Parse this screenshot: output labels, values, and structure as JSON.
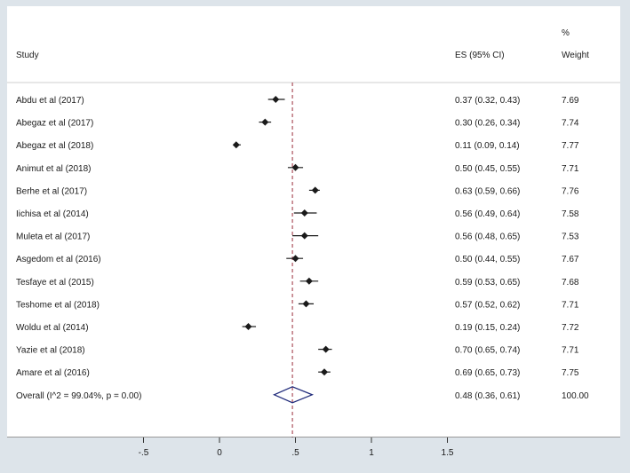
{
  "chart_data": {
    "type": "forest",
    "headers": {
      "study": "Study",
      "es": "ES (95% CI)",
      "weight_pct": "%",
      "weight": "Weight"
    },
    "studies": [
      {
        "label": "Abdu et al (2017)",
        "es": 0.37,
        "lo": 0.32,
        "hi": 0.43,
        "es_text": "0.37 (0.32, 0.43)",
        "weight": "7.69"
      },
      {
        "label": "Abegaz et al (2017)",
        "es": 0.3,
        "lo": 0.26,
        "hi": 0.34,
        "es_text": "0.30 (0.26, 0.34)",
        "weight": "7.74"
      },
      {
        "label": "Abegaz et al (2018)",
        "es": 0.11,
        "lo": 0.09,
        "hi": 0.14,
        "es_text": "0.11 (0.09, 0.14)",
        "weight": "7.77"
      },
      {
        "label": "Animut et al (2018)",
        "es": 0.5,
        "lo": 0.45,
        "hi": 0.55,
        "es_text": "0.50 (0.45, 0.55)",
        "weight": "7.71"
      },
      {
        "label": "Berhe et al (2017)",
        "es": 0.63,
        "lo": 0.59,
        "hi": 0.66,
        "es_text": "0.63 (0.59, 0.66)",
        "weight": "7.76"
      },
      {
        "label": "Iichisa et al (2014)",
        "es": 0.56,
        "lo": 0.49,
        "hi": 0.64,
        "es_text": "0.56 (0.49, 0.64)",
        "weight": "7.58"
      },
      {
        "label": "Muleta et al (2017)",
        "es": 0.56,
        "lo": 0.48,
        "hi": 0.65,
        "es_text": "0.56 (0.48, 0.65)",
        "weight": "7.53"
      },
      {
        "label": "Asgedom et al (2016)",
        "es": 0.5,
        "lo": 0.44,
        "hi": 0.55,
        "es_text": "0.50 (0.44, 0.55)",
        "weight": "7.67"
      },
      {
        "label": "Tesfaye et al  (2015)",
        "es": 0.59,
        "lo": 0.53,
        "hi": 0.65,
        "es_text": "0.59 (0.53, 0.65)",
        "weight": "7.68"
      },
      {
        "label": "Teshome et al (2018)",
        "es": 0.57,
        "lo": 0.52,
        "hi": 0.62,
        "es_text": "0.57 (0.52, 0.62)",
        "weight": "7.71"
      },
      {
        "label": "Woldu et al (2014)",
        "es": 0.19,
        "lo": 0.15,
        "hi": 0.24,
        "es_text": "0.19 (0.15, 0.24)",
        "weight": "7.72"
      },
      {
        "label": "Yazie et al (2018)",
        "es": 0.7,
        "lo": 0.65,
        "hi": 0.74,
        "es_text": "0.70 (0.65, 0.74)",
        "weight": "7.71"
      },
      {
        "label": "Amare et al (2016)",
        "es": 0.69,
        "lo": 0.65,
        "hi": 0.73,
        "es_text": "0.69 (0.65, 0.73)",
        "weight": "7.75"
      }
    ],
    "overall": {
      "label": "Overall  (I^2 = 99.04%, p = 0.00)",
      "es": 0.48,
      "lo": 0.36,
      "hi": 0.61,
      "es_text": "0.48 (0.36, 0.61)",
      "weight": "100.00"
    },
    "x_ticks": [
      -0.5,
      0,
      0.5,
      1,
      1.5
    ],
    "x_tick_labels": [
      "-.5",
      "0",
      ".5",
      "1",
      "1.5"
    ],
    "xlim": [
      -0.5,
      1.5
    ],
    "reference_line": 0.48,
    "colors": {
      "background": "#dde4ea",
      "panel": "#ffffff",
      "marker": "#1a1a1a",
      "reference_line": "#9b2c3a",
      "diamond": "#1f2a7a"
    }
  }
}
